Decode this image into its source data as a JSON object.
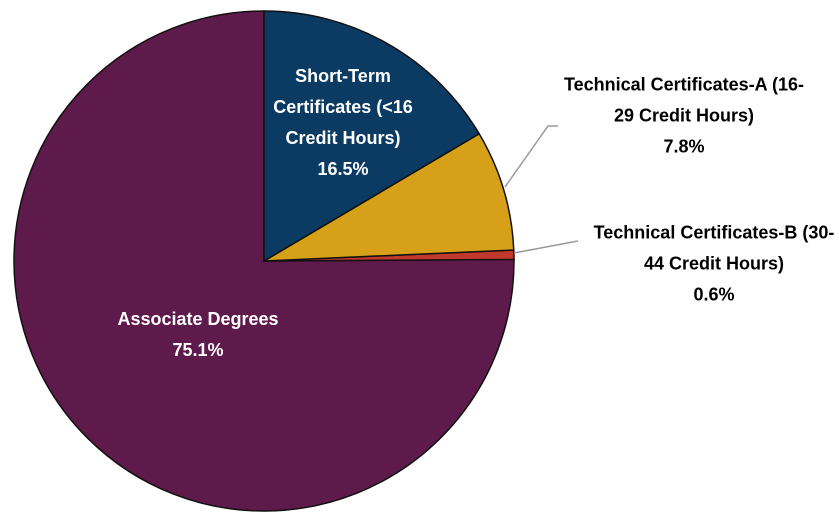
{
  "chart_data": {
    "type": "pie",
    "categories": [
      "Short-Term Certificates (<16 Credit Hours)",
      "Technical Certificates-A (16-29 Credit Hours)",
      "Technical Certificates-B (30-44 Credit Hours)",
      "Associate Degrees"
    ],
    "values": [
      16.5,
      7.8,
      0.6,
      75.1
    ],
    "value_labels": [
      "16.5%",
      "7.8%",
      "0.6%",
      "75.1%"
    ],
    "colors": [
      "#0b3a63",
      "#d6a118",
      "#c0392b",
      "#5e1a4b"
    ]
  }
}
